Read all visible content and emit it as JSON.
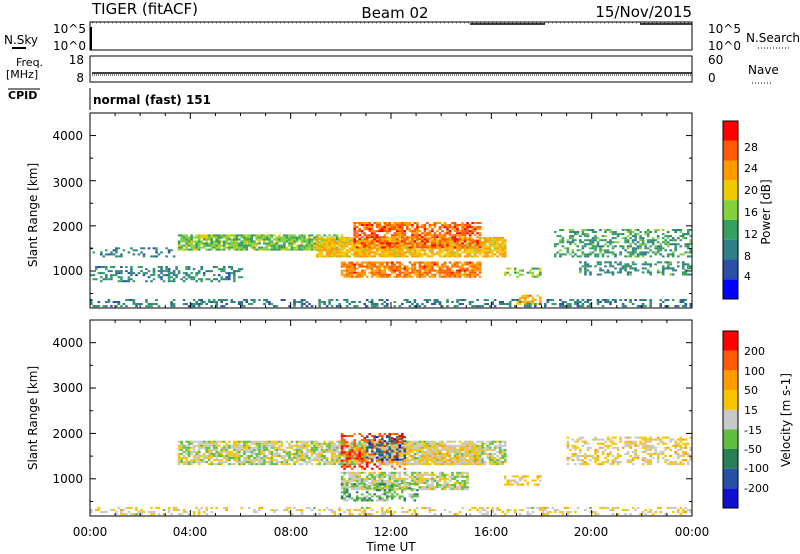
{
  "header": {
    "radar": "TIGER (fitACF)",
    "beam": "Beam 02",
    "date": "15/Nov/2015"
  },
  "noise_panel": {
    "left_label": "N.Sky",
    "right_label": "N.Search",
    "ticks": [
      "10^5",
      "10^0"
    ]
  },
  "freq_panel": {
    "left_label_1": "Freq.",
    "left_label_2": "[MHz]",
    "left_ticks": [
      "18",
      "8"
    ],
    "right_label": "Nave",
    "right_ticks": [
      "60",
      "0"
    ]
  },
  "cpid": {
    "label": "CPID",
    "text": "normal (fast) 151"
  },
  "power_panel": {
    "ylabel": "Slant Range [km]",
    "yticks": [
      "4000",
      "3000",
      "2000",
      "1000"
    ],
    "colorbar_label": "Power [dB]",
    "colorbar_ticks": [
      "28",
      "24",
      "20",
      "16",
      "12",
      "8",
      "4"
    ],
    "colors": [
      "#0000ff",
      "#2c4fa8",
      "#2f7f86",
      "#35a060",
      "#84d13a",
      "#f0ca00",
      "#ff9a00",
      "#ff5a00",
      "#ff0000"
    ]
  },
  "velocity_panel": {
    "ylabel": "Slant Range [km]",
    "yticks": [
      "4000",
      "3000",
      "2000",
      "1000"
    ],
    "colorbar_label": "Velocity [m s-1]",
    "colorbar_ticks": [
      "200",
      "100",
      "50",
      "15",
      "-15",
      "-50",
      "-100",
      "-200"
    ],
    "colors": [
      "#1010d0",
      "#2850a8",
      "#2a7f5a",
      "#5fbf40",
      "#c8c8c8",
      "#f7c400",
      "#ff9c00",
      "#ff5a00",
      "#ff0000"
    ]
  },
  "xaxis": {
    "label": "Time UT",
    "ticks": [
      "00:00",
      "04:00",
      "08:00",
      "12:00",
      "16:00",
      "20:00",
      "00:00"
    ]
  },
  "chart_data": [
    {
      "type": "heatmap",
      "name": "power",
      "xlabel": "Time UT",
      "ylabel": "Slant Range [km]",
      "xlim_hours": [
        0,
        24
      ],
      "ylim_km": [
        180,
        4500
      ],
      "zlabel": "Power [dB]",
      "zlim": [
        0,
        32
      ],
      "regions": [
        {
          "t": [
            0.0,
            24.0
          ],
          "r": [
            200,
            380
          ],
          "z": 9,
          "density": 0.35
        },
        {
          "t": [
            3.5,
            10.0
          ],
          "r": [
            1450,
            1800
          ],
          "z": 15,
          "density": 0.8
        },
        {
          "t": [
            9.0,
            16.5
          ],
          "r": [
            1300,
            1750
          ],
          "z": 21,
          "density": 0.85
        },
        {
          "t": [
            10.5,
            15.5
          ],
          "r": [
            1500,
            2050
          ],
          "z": 26,
          "density": 0.7
        },
        {
          "t": [
            10.0,
            15.5
          ],
          "r": [
            850,
            1200
          ],
          "z": 25,
          "density": 0.8
        },
        {
          "t": [
            0.0,
            6.0
          ],
          "r": [
            750,
            1100
          ],
          "z": 10,
          "density": 0.35
        },
        {
          "t": [
            0.0,
            3.5
          ],
          "r": [
            1300,
            1500
          ],
          "z": 9,
          "density": 0.3
        },
        {
          "t": [
            18.5,
            24.0
          ],
          "r": [
            1300,
            1900
          ],
          "z": 12,
          "density": 0.45
        },
        {
          "t": [
            19.5,
            24.0
          ],
          "r": [
            900,
            1200
          ],
          "z": 11,
          "density": 0.4
        },
        {
          "t": [
            17.0,
            18.0
          ],
          "r": [
            250,
            450
          ],
          "z": 22,
          "density": 0.6
        },
        {
          "t": [
            16.5,
            18.0
          ],
          "r": [
            850,
            1050
          ],
          "z": 16,
          "density": 0.5
        }
      ]
    },
    {
      "type": "heatmap",
      "name": "velocity",
      "xlabel": "Time UT",
      "ylabel": "Slant Range [km]",
      "xlim_hours": [
        0,
        24
      ],
      "ylim_km": [
        180,
        4500
      ],
      "zlabel": "Velocity [m s-1]",
      "zlim": [
        -250,
        250
      ],
      "regions": [
        {
          "t": [
            0.0,
            24.0
          ],
          "r": [
            200,
            380
          ],
          "z": 30,
          "density": 0.3
        },
        {
          "t": [
            3.5,
            16.5
          ],
          "r": [
            1300,
            1800
          ],
          "z": 0,
          "density": 0.8
        },
        {
          "t": [
            10.0,
            12.5
          ],
          "r": [
            1200,
            2000
          ],
          "z": 180,
          "density": 0.45
        },
        {
          "t": [
            11.5,
            15.5
          ],
          "r": [
            1300,
            1750
          ],
          "z": 40,
          "density": 0.7
        },
        {
          "t": [
            11.0,
            12.5
          ],
          "r": [
            1400,
            1900
          ],
          "z": -150,
          "density": 0.35
        },
        {
          "t": [
            10.0,
            15.0
          ],
          "r": [
            750,
            1150
          ],
          "z": 0,
          "density": 0.8
        },
        {
          "t": [
            10.0,
            13.0
          ],
          "r": [
            500,
            900
          ],
          "z": -60,
          "density": 0.4
        },
        {
          "t": [
            19.0,
            24.0
          ],
          "r": [
            1300,
            1900
          ],
          "z": 35,
          "density": 0.45
        },
        {
          "t": [
            16.5,
            18.0
          ],
          "r": [
            850,
            1050
          ],
          "z": 40,
          "density": 0.5
        }
      ]
    }
  ]
}
